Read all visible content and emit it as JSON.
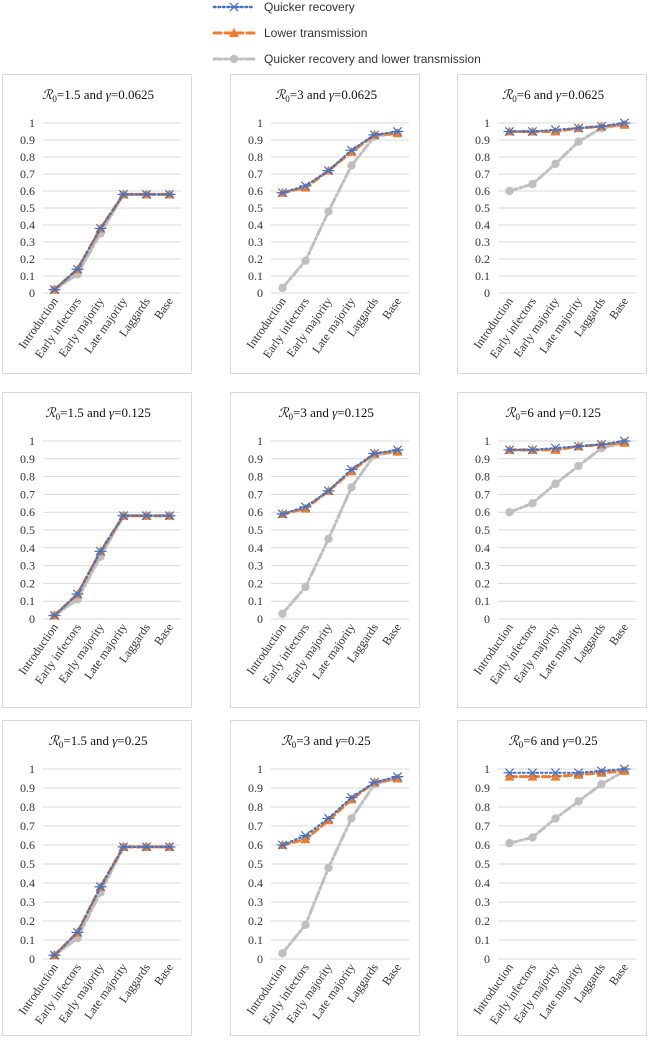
{
  "legend": [
    {
      "label": "Quicker recovery",
      "color": "#4472c4",
      "marker": "asterisk",
      "dash": "dotted"
    },
    {
      "label": "Lower transmission",
      "color": "#ed7d31",
      "marker": "triangle",
      "dash": "dashed"
    },
    {
      "label": "Quicker recovery and lower transmission",
      "color": "#bfbfbf",
      "marker": "circle",
      "dash": "dashdot"
    }
  ],
  "chart_data": [
    {
      "type": "line",
      "title_r": "=1.5 and ",
      "title_g": "=0.0625",
      "categories": [
        "Introduction",
        "Early infectors",
        "Early majority",
        "Late majority",
        "Laggards",
        "Base"
      ],
      "yticks": [
        "0",
        "0.1",
        "0.2",
        "0.3",
        "0.4",
        "0.5",
        "0.6",
        "0.7",
        "0.8",
        "0.9",
        "1"
      ],
      "ylim": [
        0,
        1
      ],
      "series": [
        {
          "name": "Quicker recovery",
          "values": [
            0.02,
            0.14,
            0.38,
            0.58,
            0.58,
            0.58
          ]
        },
        {
          "name": "Lower transmission",
          "values": [
            0.02,
            0.14,
            0.38,
            0.58,
            0.58,
            0.58
          ]
        },
        {
          "name": "Quicker recovery and lower transmission",
          "values": [
            0.02,
            0.11,
            0.35,
            0.58,
            0.58,
            0.58
          ]
        }
      ]
    },
    {
      "type": "line",
      "title_r": "=3 and ",
      "title_g": "=0.0625",
      "categories": [
        "Introduction",
        "Early infectors",
        "Early majority",
        "Late majority",
        "Laggards",
        "Base"
      ],
      "yticks": [
        "0",
        "0.1",
        "0.2",
        "0.3",
        "0.4",
        "0.5",
        "0.6",
        "0.7",
        "0.8",
        "0.9",
        "1"
      ],
      "ylim": [
        0,
        1
      ],
      "series": [
        {
          "name": "Quicker recovery",
          "values": [
            0.59,
            0.63,
            0.72,
            0.84,
            0.93,
            0.95
          ]
        },
        {
          "name": "Lower transmission",
          "values": [
            0.59,
            0.62,
            0.72,
            0.83,
            0.93,
            0.94
          ]
        },
        {
          "name": "Quicker recovery and lower transmission",
          "values": [
            0.03,
            0.19,
            0.48,
            0.75,
            0.92,
            0.94
          ]
        }
      ]
    },
    {
      "type": "line",
      "title_r": "=6 and ",
      "title_g": "=0.0625",
      "categories": [
        "Introduction",
        "Early infectors",
        "Early majority",
        "Late majority",
        "Laggards",
        "Base"
      ],
      "yticks": [
        "0",
        "0.1",
        "0.2",
        "0.3",
        "0.4",
        "0.5",
        "0.6",
        "0.7",
        "0.8",
        "0.9",
        "1"
      ],
      "ylim": [
        0,
        1
      ],
      "series": [
        {
          "name": "Quicker recovery",
          "values": [
            0.95,
            0.95,
            0.96,
            0.97,
            0.98,
            1.0
          ]
        },
        {
          "name": "Lower transmission",
          "values": [
            0.95,
            0.95,
            0.95,
            0.97,
            0.98,
            0.99
          ]
        },
        {
          "name": "Quicker recovery and lower transmission",
          "values": [
            0.6,
            0.64,
            0.76,
            0.89,
            0.97,
            0.99
          ]
        }
      ]
    },
    {
      "type": "line",
      "title_r": "=1.5 and ",
      "title_g": "=0.125",
      "categories": [
        "Introduction",
        "Early infectors",
        "Early majority",
        "Late majority",
        "Laggards",
        "Base"
      ],
      "yticks": [
        "0",
        "0.1",
        "0.2",
        "0.3",
        "0.4",
        "0.5",
        "0.6",
        "0.7",
        "0.8",
        "0.9",
        "1"
      ],
      "ylim": [
        0,
        1
      ],
      "series": [
        {
          "name": "Quicker recovery",
          "values": [
            0.02,
            0.14,
            0.38,
            0.58,
            0.58,
            0.58
          ]
        },
        {
          "name": "Lower transmission",
          "values": [
            0.02,
            0.14,
            0.38,
            0.58,
            0.58,
            0.58
          ]
        },
        {
          "name": "Quicker recovery and lower transmission",
          "values": [
            0.02,
            0.11,
            0.35,
            0.58,
            0.58,
            0.58
          ]
        }
      ]
    },
    {
      "type": "line",
      "title_r": "=3 and ",
      "title_g": "=0.125",
      "categories": [
        "Introduction",
        "Early infectors",
        "Early majority",
        "Late majority",
        "Laggards",
        "Base"
      ],
      "yticks": [
        "0",
        "0.1",
        "0.2",
        "0.3",
        "0.4",
        "0.5",
        "0.6",
        "0.7",
        "0.8",
        "0.9",
        "1"
      ],
      "ylim": [
        0,
        1
      ],
      "series": [
        {
          "name": "Quicker recovery",
          "values": [
            0.59,
            0.63,
            0.72,
            0.84,
            0.93,
            0.95
          ]
        },
        {
          "name": "Lower transmission",
          "values": [
            0.59,
            0.62,
            0.72,
            0.83,
            0.93,
            0.94
          ]
        },
        {
          "name": "Quicker recovery and lower transmission",
          "values": [
            0.03,
            0.18,
            0.45,
            0.74,
            0.92,
            0.94
          ]
        }
      ]
    },
    {
      "type": "line",
      "title_r": "=6 and ",
      "title_g": "=0.125",
      "categories": [
        "Introduction",
        "Early infectors",
        "Early majority",
        "Late majority",
        "Laggards",
        "Base"
      ],
      "yticks": [
        "0",
        "0.1",
        "0.2",
        "0.3",
        "0.4",
        "0.5",
        "0.6",
        "0.7",
        "0.8",
        "0.9",
        "1"
      ],
      "ylim": [
        0,
        1
      ],
      "series": [
        {
          "name": "Quicker recovery",
          "values": [
            0.95,
            0.95,
            0.96,
            0.97,
            0.98,
            1.0
          ]
        },
        {
          "name": "Lower transmission",
          "values": [
            0.95,
            0.95,
            0.95,
            0.97,
            0.98,
            0.99
          ]
        },
        {
          "name": "Quicker recovery and lower transmission",
          "values": [
            0.6,
            0.65,
            0.76,
            0.86,
            0.96,
            0.99
          ]
        }
      ]
    },
    {
      "type": "line",
      "title_r": "=1.5 and ",
      "title_g": "=0.25",
      "categories": [
        "Introduction",
        "Early infectors",
        "Early majority",
        "Late majority",
        "Laggards",
        "Base"
      ],
      "yticks": [
        "0",
        "0.1",
        "0.2",
        "0.3",
        "0.4",
        "0.5",
        "0.6",
        "0.7",
        "0.8",
        "0.9",
        "1"
      ],
      "ylim": [
        0,
        1
      ],
      "series": [
        {
          "name": "Quicker recovery",
          "values": [
            0.02,
            0.14,
            0.38,
            0.59,
            0.59,
            0.59
          ]
        },
        {
          "name": "Lower transmission",
          "values": [
            0.02,
            0.14,
            0.38,
            0.59,
            0.59,
            0.59
          ]
        },
        {
          "name": "Quicker recovery and lower transmission",
          "values": [
            0.02,
            0.11,
            0.35,
            0.59,
            0.59,
            0.59
          ]
        }
      ]
    },
    {
      "type": "line",
      "title_r": "=3 and ",
      "title_g": "=0.25",
      "categories": [
        "Introduction",
        "Early infectors",
        "Early majority",
        "Late majority",
        "Laggards",
        "Base"
      ],
      "yticks": [
        "0",
        "0.1",
        "0.2",
        "0.3",
        "0.4",
        "0.5",
        "0.6",
        "0.7",
        "0.8",
        "0.9",
        "1"
      ],
      "ylim": [
        0,
        1
      ],
      "series": [
        {
          "name": "Quicker recovery",
          "values": [
            0.6,
            0.65,
            0.74,
            0.85,
            0.93,
            0.96
          ]
        },
        {
          "name": "Lower transmission",
          "values": [
            0.6,
            0.63,
            0.73,
            0.84,
            0.93,
            0.95
          ]
        },
        {
          "name": "Quicker recovery and lower transmission",
          "values": [
            0.03,
            0.18,
            0.48,
            0.74,
            0.92,
            0.95
          ]
        }
      ]
    },
    {
      "type": "line",
      "title_r": "=6 and ",
      "title_g": "=0.25",
      "categories": [
        "Introduction",
        "Early infectors",
        "Early majority",
        "Late majority",
        "Laggards",
        "Base"
      ],
      "yticks": [
        "0",
        "0.1",
        "0.2",
        "0.3",
        "0.4",
        "0.5",
        "0.6",
        "0.7",
        "0.8",
        "0.9",
        "1"
      ],
      "ylim": [
        0,
        1
      ],
      "series": [
        {
          "name": "Quicker recovery",
          "values": [
            0.98,
            0.98,
            0.98,
            0.98,
            0.99,
            1.0
          ]
        },
        {
          "name": "Lower transmission",
          "values": [
            0.96,
            0.96,
            0.96,
            0.97,
            0.98,
            0.99
          ]
        },
        {
          "name": "Quicker recovery and lower transmission",
          "values": [
            0.61,
            0.64,
            0.74,
            0.83,
            0.92,
            0.99
          ]
        }
      ]
    }
  ]
}
